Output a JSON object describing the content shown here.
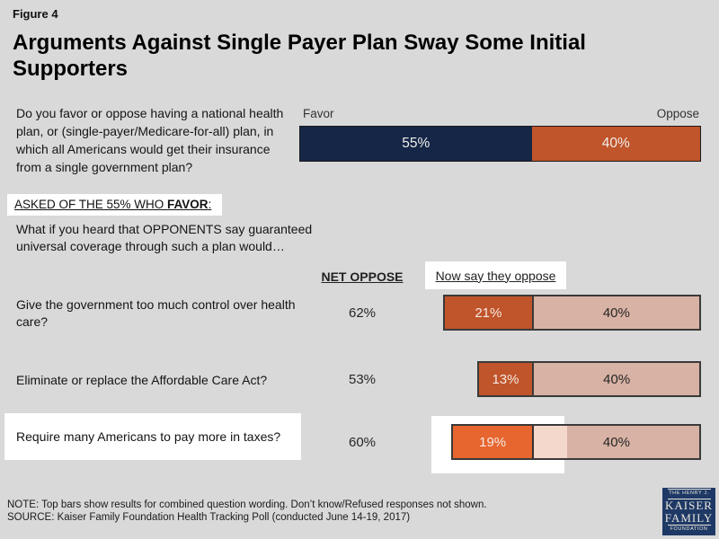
{
  "figure_label": "Figure 4",
  "asked_of": {
    "prefix": "ASKED OF THE 55% WHO ",
    "bold": "FAVOR",
    "suffix": ":"
  },
  "followup_intro": "What if you heard that OPPONENTS say guaranteed universal coverage through such a plan would…",
  "columns": {
    "net_oppose": "NET OPPOSE",
    "now_say": "Now say they oppose"
  },
  "note": "NOTE: Top bars show results for combined question wording. Don’t know/Refused responses not shown.",
  "source": "SOURCE: Kaiser Family Foundation Health Tracking Poll (conducted June 14-19, 2017)",
  "logo": {
    "line1": "THE HENRY J.",
    "line2": "KAISER",
    "line3": "FAMILY",
    "line4": "FOUNDATION"
  },
  "colors": {
    "background": "#D9D9D9",
    "navy": "#152646",
    "orange_muted": "#C0542A",
    "orange_bright": "#E7652E",
    "pink": "#D8B2A4",
    "pink_washed": "#F4D8CC",
    "highlight_box": "#FFFFFF",
    "logo_navy": "#1F3966"
  },
  "chart_data": {
    "type": "bar",
    "title": "Arguments Against Single Payer Plan Sway Some Initial Supporters",
    "subtitle": "",
    "axis_total": 95,
    "legend_position": "none",
    "grid": false,
    "top_bar": {
      "question": "Do you favor or oppose having a national health plan, or (single-payer/Medicare-for-all) plan, in which all Americans would get their insurance from a single government plan?",
      "favor_label": "Favor",
      "oppose_label": "Oppose",
      "favor": 55,
      "oppose": 40,
      "favor_pct": "55%",
      "oppose_pct": "40%"
    },
    "rows": [
      {
        "label": "Give the government too much control over health care?",
        "net_oppose": 62,
        "net_pct": "62%",
        "now_oppose": 21,
        "now_pct": "21%",
        "orig_oppose": 40,
        "orig_pct": "40%",
        "highlighted": false
      },
      {
        "label": "Eliminate or replace the Affordable Care Act?",
        "net_oppose": 53,
        "net_pct": "53%",
        "now_oppose": 13,
        "now_pct": "13%",
        "orig_oppose": 40,
        "orig_pct": "40%",
        "highlighted": false
      },
      {
        "label": "Require many Americans to pay more in taxes?",
        "net_oppose": 60,
        "net_pct": "60%",
        "now_oppose": 19,
        "now_pct": "19%",
        "orig_oppose": 40,
        "orig_pct": "40%",
        "highlighted": true
      }
    ]
  }
}
